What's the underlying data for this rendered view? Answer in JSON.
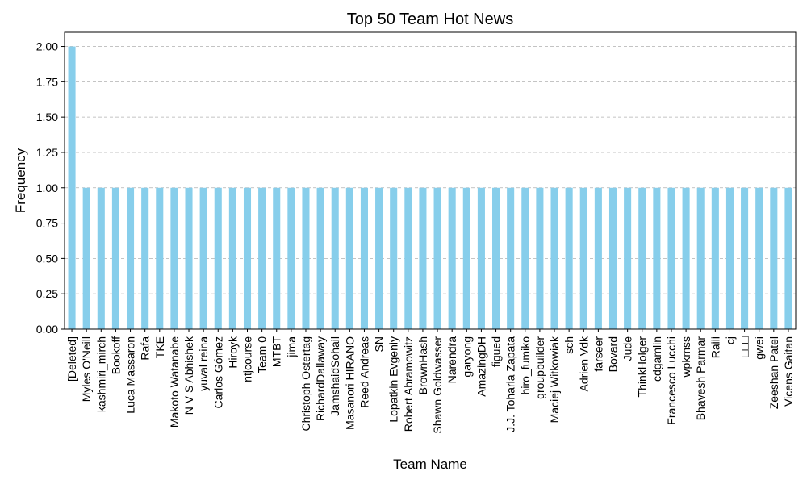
{
  "chart_data": {
    "type": "bar",
    "title": "Top 50 Team Hot News",
    "xlabel": "Team Name",
    "ylabel": "Frequency",
    "ylim": [
      0,
      2.1
    ],
    "yticks": [
      "0.00",
      "0.25",
      "0.50",
      "0.75",
      "1.00",
      "1.25",
      "1.50",
      "1.75",
      "2.00"
    ],
    "grid": "y-dashed",
    "bar_color": "#87ceeb",
    "categories": [
      "[Deleted]",
      "Myles O'Neill",
      "kashmiri_mirch",
      "Bookoff",
      "Luca Massaron",
      "Rafa",
      "TKE",
      "Makoto Watanabe",
      "N V S Abhishek",
      "yuval reina",
      "Carlos Gómez",
      "Hiroyk",
      "ntjcourse",
      "Team 0",
      "MTBT",
      "jima",
      "Christoph Ostertag",
      "RichardDallaway",
      "JamshaidSohail",
      "Masanori HIRANO",
      "Reed Andreas",
      "SN",
      "Lopatkin Evgeniy",
      "Robert Abramowitz",
      "BrownHash",
      "Shawn Goldwasser",
      "Narendra",
      "garyong",
      "AmazingDH",
      "figued",
      "J.J. Toharia Zapata",
      "hiro_fumiko",
      "groupbuilder",
      "Maciej Witkowiak",
      "sch",
      "Adrien Vdk",
      "farseer",
      "Bovard",
      "Jude",
      "ThinkHolger",
      "cdgamlin",
      "Francesco Lucchi",
      "wpkmss",
      "Bhavesh Parmar",
      "Raiii",
      "cj",
      "□□□",
      "gwei",
      "Zeeshan Patel",
      "Vicens Gaitan"
    ],
    "values": [
      2,
      1,
      1,
      1,
      1,
      1,
      1,
      1,
      1,
      1,
      1,
      1,
      1,
      1,
      1,
      1,
      1,
      1,
      1,
      1,
      1,
      1,
      1,
      1,
      1,
      1,
      1,
      1,
      1,
      1,
      1,
      1,
      1,
      1,
      1,
      1,
      1,
      1,
      1,
      1,
      1,
      1,
      1,
      1,
      1,
      1,
      1,
      1,
      1,
      1
    ]
  }
}
